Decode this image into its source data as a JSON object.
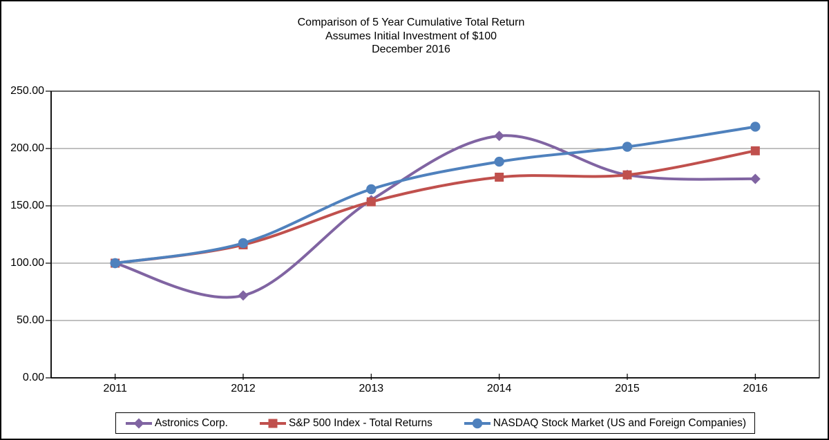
{
  "chart_data": {
    "type": "line",
    "title": "Comparison of 5 Year Cumulative Total Return",
    "subtitle": "Assumes Initial Investment of $100",
    "subtitle2": "December 2016",
    "categories": [
      "2011",
      "2012",
      "2013",
      "2014",
      "2015",
      "2016"
    ],
    "series": [
      {
        "name": "Astronics Corp.",
        "marker": "diamond",
        "color": "#8064A2",
        "values": [
          100.0,
          71.8,
          155.0,
          211.0,
          177.0,
          173.5
        ]
      },
      {
        "name": "S&P 500 Index - Total Returns",
        "marker": "square",
        "color": "#C0504D",
        "values": [
          100.0,
          116.0,
          153.5,
          175.0,
          177.0,
          198.0
        ]
      },
      {
        "name": "NASDAQ Stock Market (US and Foreign Companies)",
        "marker": "circle",
        "color": "#4F81BD",
        "values": [
          100.0,
          117.5,
          164.5,
          188.5,
          201.5,
          219.0
        ]
      }
    ],
    "ylim": [
      0,
      250
    ],
    "ytick_step": 50,
    "ytick_labels": [
      "0.00",
      "50.00",
      "100.00",
      "150.00",
      "200.00",
      "250.00"
    ],
    "xlabel": "",
    "ylabel": "",
    "grid": "horizontal",
    "smoothed_lines": true,
    "legend_position": "bottom",
    "colors": {
      "gridline": "#808080",
      "axis": "#000000",
      "plot_border": "#000000",
      "background": "#FFFFFF"
    }
  }
}
